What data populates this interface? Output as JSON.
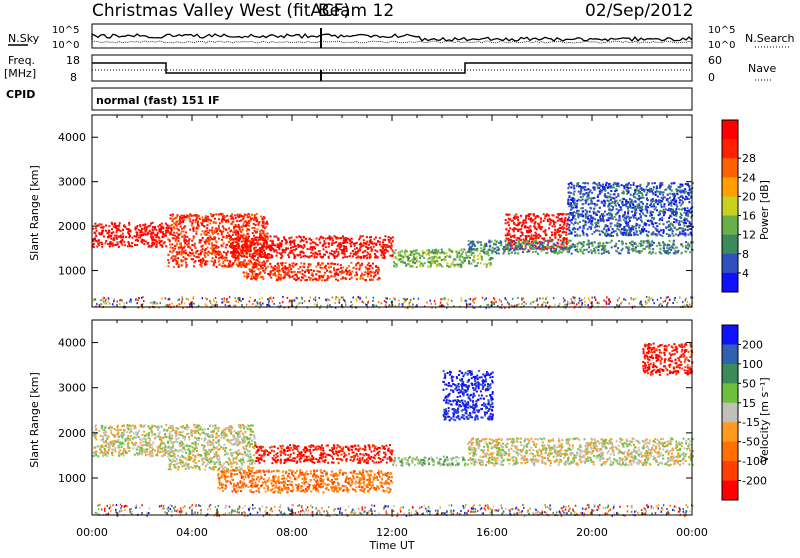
{
  "header": {
    "station": "Christmas Valley West (fitACF)",
    "beam": "Beam 12",
    "date": "02/Sep/2012"
  },
  "top_panels": {
    "nsky_label": "N.Sky",
    "nsky_ticks": [
      "10^5",
      "10^0"
    ],
    "nsearch_label": "N.Search",
    "nsearch_ticks": [
      "10^5",
      "10^0"
    ],
    "freq_label_1": "Freq.",
    "freq_label_2": "[MHz]",
    "freq_ticks": [
      "18",
      "8"
    ],
    "nave_label": "Nave",
    "nave_ticks": [
      "60",
      "0"
    ],
    "cpid_label": "CPID",
    "cpid_text": "normal (fast) 151 IF"
  },
  "colors": {
    "power_scale": [
      "#1010ff",
      "#3050c0",
      "#3a8a5a",
      "#6ab04a",
      "#c8d020",
      "#ffa000",
      "#ff6000",
      "#ff2000",
      "#ff0000"
    ],
    "velocity_scale": [
      "#1010ff",
      "#3060b0",
      "#3a8a5a",
      "#70c040",
      "#c0c0b8",
      "#ff9a20",
      "#ff7000",
      "#ff4000",
      "#ff0000"
    ],
    "ground_scatter": "#c0c0b8"
  },
  "chart_data": [
    {
      "type": "heatmap",
      "name": "power-panel",
      "ylabel": "Slant Range [km]",
      "xlabel": "Time UT",
      "x_ticks": [
        "00:00",
        "04:00",
        "08:00",
        "12:00",
        "16:00",
        "20:00",
        "00:00"
      ],
      "x_range_hours": [
        0,
        24
      ],
      "y_ticks": [
        1000,
        2000,
        3000,
        4000
      ],
      "y_range_km": [
        180,
        4500
      ],
      "colorbar_label": "Power [dB]",
      "colorbar_ticks": [
        "4",
        "8",
        "12",
        "16",
        "20",
        "24",
        "28"
      ],
      "regions": [
        {
          "t0": 0.0,
          "t1": 3.0,
          "r0": 1550,
          "r1": 2100,
          "level": 8
        },
        {
          "t0": 3.0,
          "t1": 7.0,
          "r0": 1100,
          "r1": 2300,
          "level": 7
        },
        {
          "t0": 5.5,
          "t1": 12.0,
          "r0": 1300,
          "r1": 1800,
          "level": 8
        },
        {
          "t0": 6.0,
          "t1": 11.5,
          "r0": 800,
          "r1": 1200,
          "level": 7
        },
        {
          "t0": 12.0,
          "t1": 16.0,
          "r0": 1100,
          "r1": 1500,
          "level": 3
        },
        {
          "t0": 16.5,
          "t1": 19.0,
          "r0": 1500,
          "r1": 2300,
          "level": 8
        },
        {
          "t0": 15.0,
          "t1": 24.0,
          "r0": 1400,
          "r1": 1700,
          "level": 2
        },
        {
          "t0": 19.0,
          "t1": 24.0,
          "r0": 1800,
          "r1": 3000,
          "level": 1
        }
      ]
    },
    {
      "type": "heatmap",
      "name": "velocity-panel",
      "ylabel": "Slant Range [km]",
      "xlabel": "Time UT",
      "x_ticks": [
        "00:00",
        "04:00",
        "08:00",
        "12:00",
        "16:00",
        "20:00",
        "00:00"
      ],
      "x_range_hours": [
        0,
        24
      ],
      "y_ticks": [
        1000,
        2000,
        3000,
        4000
      ],
      "y_range_km": [
        180,
        4500
      ],
      "colorbar_label": "Velocity [m s⁻¹]",
      "colorbar_ticks": [
        "200",
        "100",
        "50",
        "15",
        "-15",
        "-50",
        "-100",
        "-200"
      ],
      "regions": [
        {
          "t0": 0.0,
          "t1": 3.0,
          "r0": 1500,
          "r1": 2200,
          "level": 4
        },
        {
          "t0": 3.0,
          "t1": 6.5,
          "r0": 1200,
          "r1": 2200,
          "level": 4
        },
        {
          "t0": 6.5,
          "t1": 12.0,
          "r0": 1350,
          "r1": 1750,
          "level": 8
        },
        {
          "t0": 5.0,
          "t1": 12.0,
          "r0": 700,
          "r1": 1200,
          "level": 6
        },
        {
          "t0": 12.0,
          "t1": 15.0,
          "r0": 1300,
          "r1": 1500,
          "level": 3
        },
        {
          "t0": 14.0,
          "t1": 16.0,
          "r0": 2300,
          "r1": 3400,
          "level": 0
        },
        {
          "t0": 15.0,
          "t1": 24.0,
          "r0": 1300,
          "r1": 1900,
          "level": 4
        },
        {
          "t0": 22.0,
          "t1": 24.0,
          "r0": 3300,
          "r1": 4000,
          "level": 8
        }
      ]
    }
  ]
}
